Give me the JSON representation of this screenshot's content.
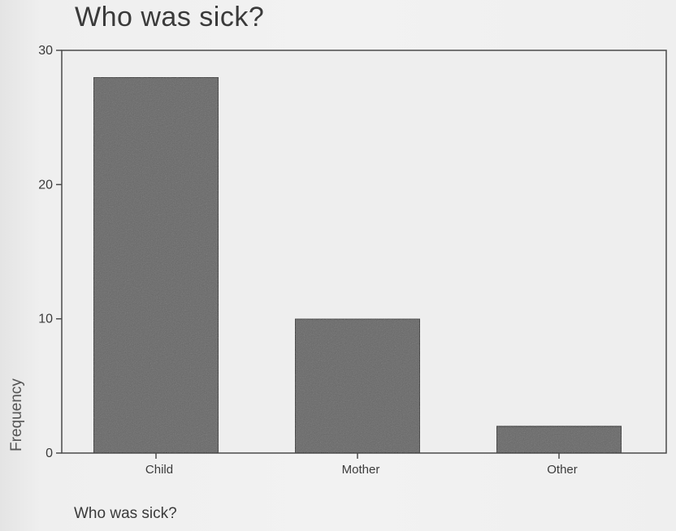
{
  "chart_data": {
    "type": "bar",
    "title": "Who was sick?",
    "xlabel": "Who was sick?",
    "ylabel": "Frequency",
    "categories": [
      "Child",
      "Mother",
      "Other"
    ],
    "values": [
      28,
      10,
      2
    ],
    "ylim": [
      0,
      30
    ],
    "yticks": [
      0,
      10,
      20,
      30
    ],
    "grid": false,
    "colors": {
      "bar": "#676767",
      "plot_background": "#eeeeee",
      "axis": "#4a4a4a"
    }
  }
}
